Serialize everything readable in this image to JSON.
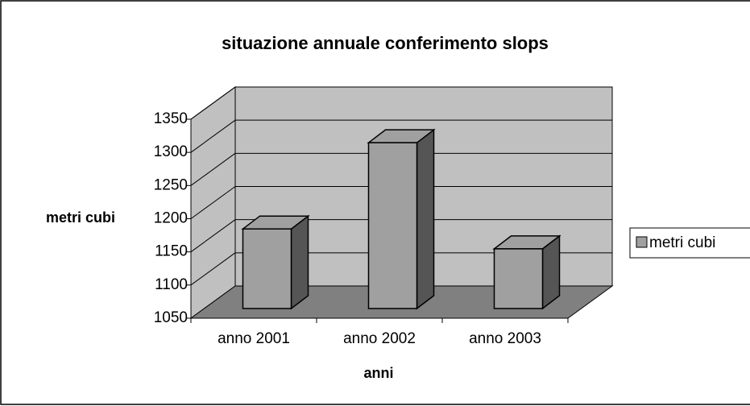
{
  "chart_data": {
    "type": "bar3d",
    "title": "situazione annuale conferimento slops",
    "x_label": "anni",
    "y_label": "metri cubi",
    "categories": [
      "anno 2001",
      "anno 2002",
      "anno 2003"
    ],
    "series": [
      {
        "name": "metri cubi",
        "color": "#a0a0a0",
        "values": [
          1170,
          1300,
          1140
        ]
      }
    ],
    "ylim": [
      1050,
      1350
    ],
    "yticks": [
      1050,
      1100,
      1150,
      1200,
      1250,
      1300,
      1350
    ],
    "grid": true,
    "legend": "right"
  }
}
